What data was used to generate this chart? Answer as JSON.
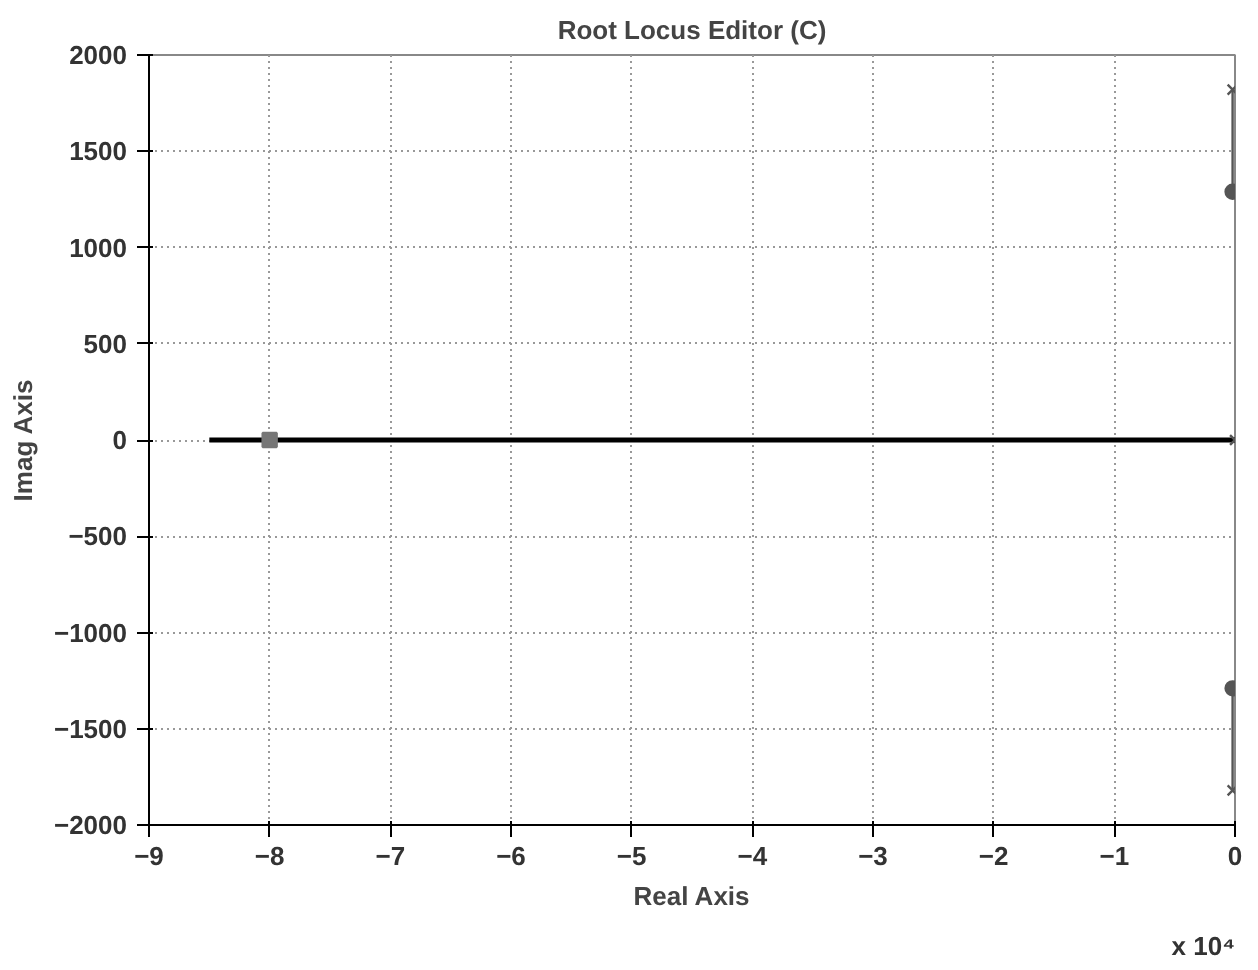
{
  "chart_data": {
    "type": "line",
    "title": "Root Locus Editor (C)",
    "xlabel": "Real Axis",
    "ylabel": "Imag Axis",
    "annotations": [
      "x 10⁴"
    ],
    "xlim": [
      -9,
      0
    ],
    "ylim": [
      -2000,
      2000
    ],
    "xticks": [
      -9,
      -8,
      -7,
      -6,
      -5,
      -4,
      -3,
      -2,
      -1,
      0
    ],
    "yticks": [
      -2000,
      -1500,
      -1000,
      -500,
      0,
      500,
      1000,
      1500,
      2000
    ],
    "grid": true,
    "series": [
      {
        "color": "#000000",
        "x": [
          -8.5,
          0
        ],
        "values": [
          0,
          0
        ]
      },
      {
        "color": "#555555",
        "x": [
          -0.02,
          -0.02
        ],
        "values": [
          1290,
          1820
        ]
      },
      {
        "color": "#555555",
        "x": [
          -0.02,
          -0.02
        ],
        "values": [
          -1290,
          -1820
        ]
      },
      {
        "type": "scatter",
        "color": "#555555",
        "x": [
          -0.02,
          -0.02,
          0
        ],
        "values": [
          1820,
          -1820,
          0
        ],
        "marker": "cross"
      },
      {
        "type": "scatter",
        "color": "#555555",
        "x": [
          -0.02,
          -0.02
        ],
        "values": [
          1290,
          -1290
        ],
        "marker": "circle"
      },
      {
        "type": "scatter",
        "color": "#777777",
        "x": [
          -8
        ],
        "values": [
          0
        ],
        "marker": "square"
      }
    ]
  }
}
